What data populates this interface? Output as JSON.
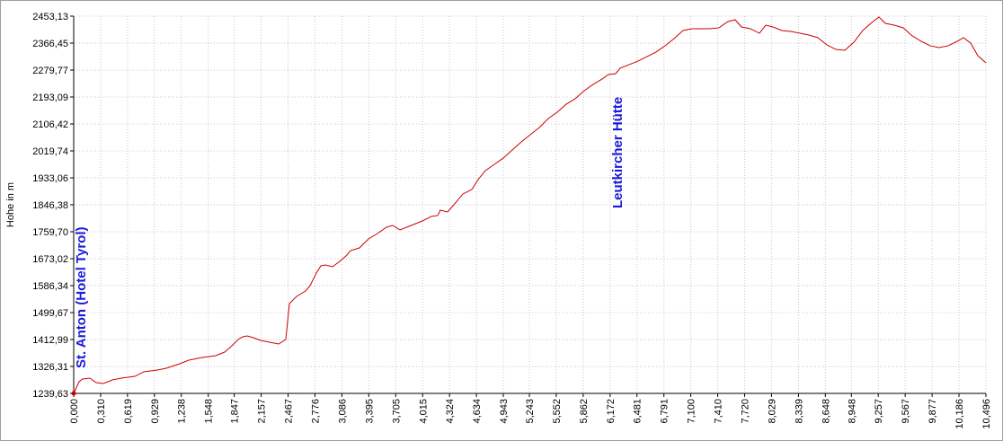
{
  "chart_data": {
    "type": "line",
    "y_label": "Hohe  in  m",
    "xlim": [
      0,
      10.496
    ],
    "ylim": [
      1239.63,
      2453.13
    ],
    "grid": true,
    "xticks": [
      {
        "value": 0,
        "label": "0,000"
      },
      {
        "value": 0.31,
        "label": "0,310"
      },
      {
        "value": 0.619,
        "label": "0,619"
      },
      {
        "value": 0.929,
        "label": "0,929"
      },
      {
        "value": 1.238,
        "label": "1,238"
      },
      {
        "value": 1.548,
        "label": "1,548"
      },
      {
        "value": 1.847,
        "label": "1,847"
      },
      {
        "value": 2.157,
        "label": "2,157"
      },
      {
        "value": 2.467,
        "label": "2,467"
      },
      {
        "value": 2.776,
        "label": "2,776"
      },
      {
        "value": 3.086,
        "label": "3,086"
      },
      {
        "value": 3.395,
        "label": "3,395"
      },
      {
        "value": 3.705,
        "label": "3,705"
      },
      {
        "value": 4.015,
        "label": "4,015"
      },
      {
        "value": 4.324,
        "label": "4,324"
      },
      {
        "value": 4.634,
        "label": "4,634"
      },
      {
        "value": 4.943,
        "label": "4,943"
      },
      {
        "value": 5.243,
        "label": "5,243"
      },
      {
        "value": 5.552,
        "label": "5,552"
      },
      {
        "value": 5.862,
        "label": "5,862"
      },
      {
        "value": 6.172,
        "label": "6,172"
      },
      {
        "value": 6.481,
        "label": "6,481"
      },
      {
        "value": 6.791,
        "label": "6,791"
      },
      {
        "value": 7.1,
        "label": "7,100"
      },
      {
        "value": 7.41,
        "label": "7,410"
      },
      {
        "value": 7.72,
        "label": "7,720"
      },
      {
        "value": 8.029,
        "label": "8,029"
      },
      {
        "value": 8.339,
        "label": "8,339"
      },
      {
        "value": 8.648,
        "label": "8,648"
      },
      {
        "value": 8.948,
        "label": "8,948"
      },
      {
        "value": 9.257,
        "label": "9,257"
      },
      {
        "value": 9.567,
        "label": "9,567"
      },
      {
        "value": 9.877,
        "label": "9,877"
      },
      {
        "value": 10.186,
        "label": "10,186"
      },
      {
        "value": 10.496,
        "label": "10,496"
      }
    ],
    "yticks": [
      {
        "value": 1239.63,
        "label": "1239,63"
      },
      {
        "value": 1326.31,
        "label": "1326,31"
      },
      {
        "value": 1412.99,
        "label": "1412,99"
      },
      {
        "value": 1499.67,
        "label": "1499,67"
      },
      {
        "value": 1586.34,
        "label": "1586,34"
      },
      {
        "value": 1673.02,
        "label": "1673,02"
      },
      {
        "value": 1759.7,
        "label": "1759,70"
      },
      {
        "value": 1846.38,
        "label": "1846,38"
      },
      {
        "value": 1933.06,
        "label": "1933,06"
      },
      {
        "value": 2019.74,
        "label": "2019,74"
      },
      {
        "value": 2106.42,
        "label": "2106,42"
      },
      {
        "value": 2193.09,
        "label": "2193,09"
      },
      {
        "value": 2279.77,
        "label": "2279,77"
      },
      {
        "value": 2366.45,
        "label": "2366,45"
      },
      {
        "value": 2453.13,
        "label": "2453,13"
      }
    ],
    "color": "#cc0000",
    "annotations": [
      {
        "text": "St. Anton (Hotel Tyrol)",
        "x": 0
      },
      {
        "text": "Leutkircher Hütte",
        "x": 6.172
      }
    ],
    "x": [
      0,
      0.062,
      0.103,
      0.186,
      0.259,
      0.341,
      0.445,
      0.548,
      0.703,
      0.807,
      0.962,
      1.065,
      1.22,
      1.324,
      1.479,
      1.634,
      1.737,
      1.82,
      1.892,
      1.944,
      1.996,
      2.068,
      2.151,
      2.254,
      2.358,
      2.44,
      2.482,
      2.565,
      2.668,
      2.72,
      2.792,
      2.844,
      2.895,
      2.978,
      3.061,
      3.133,
      3.185,
      3.288,
      3.392,
      3.495,
      3.599,
      3.671,
      3.754,
      3.857,
      4.012,
      4.116,
      4.188,
      4.219,
      4.302,
      4.374,
      4.478,
      4.581,
      4.653,
      4.736,
      4.84,
      4.943,
      5.046,
      5.15,
      5.253,
      5.357,
      5.46,
      5.563,
      5.667,
      5.77,
      5.874,
      5.977,
      6.081,
      6.153,
      6.236,
      6.287,
      6.391,
      6.494,
      6.598,
      6.701,
      6.804,
      6.908,
      7.011,
      7.115,
      7.218,
      7.321,
      7.425,
      7.528,
      7.611,
      7.683,
      7.787,
      7.89,
      7.963,
      8.045,
      8.149,
      8.252,
      8.356,
      8.459,
      8.562,
      8.666,
      8.769,
      8.873,
      8.976,
      9.079,
      9.183,
      9.266,
      9.338,
      9.441,
      9.545,
      9.648,
      9.752,
      9.855,
      9.958,
      10.062,
      10.165,
      10.238,
      10.32,
      10.403,
      10.496
    ],
    "y": [
      1239.6,
      1277.2,
      1285.8,
      1288.7,
      1274.3,
      1271.4,
      1282.9,
      1288.7,
      1294.5,
      1309.0,
      1314.7,
      1320.5,
      1335.0,
      1346.5,
      1355.2,
      1361.0,
      1372.5,
      1392.8,
      1413.0,
      1421.6,
      1424.5,
      1418.8,
      1410.1,
      1404.3,
      1398.5,
      1413.0,
      1528.6,
      1551.7,
      1569.0,
      1586.4,
      1626.8,
      1649.9,
      1652.8,
      1647.0,
      1664.4,
      1681.7,
      1699.0,
      1707.7,
      1736.6,
      1753.9,
      1774.2,
      1779.9,
      1765.5,
      1777.1,
      1794.4,
      1808.9,
      1811.8,
      1829.1,
      1823.3,
      1846.4,
      1881.1,
      1895.5,
      1927.3,
      1956.2,
      1976.4,
      1996.7,
      2022.7,
      2048.7,
      2071.8,
      2094.9,
      2123.8,
      2144.0,
      2170.1,
      2187.4,
      2213.4,
      2233.7,
      2251.0,
      2265.4,
      2268.3,
      2285.7,
      2297.2,
      2308.8,
      2323.2,
      2337.7,
      2357.9,
      2381.0,
      2407.0,
      2412.8,
      2412.8,
      2412.8,
      2415.7,
      2435.8,
      2441.6,
      2418.5,
      2412.8,
      2398.2,
      2424.2,
      2418.5,
      2406.9,
      2404.0,
      2398.2,
      2392.5,
      2383.8,
      2360.7,
      2346.2,
      2343.3,
      2369.3,
      2406.9,
      2432.9,
      2450.2,
      2430.0,
      2424.2,
      2415.6,
      2389.6,
      2372.2,
      2357.9,
      2352.0,
      2357.9,
      2372.2,
      2383.8,
      2366.5,
      2326.0,
      2302.9
    ]
  }
}
